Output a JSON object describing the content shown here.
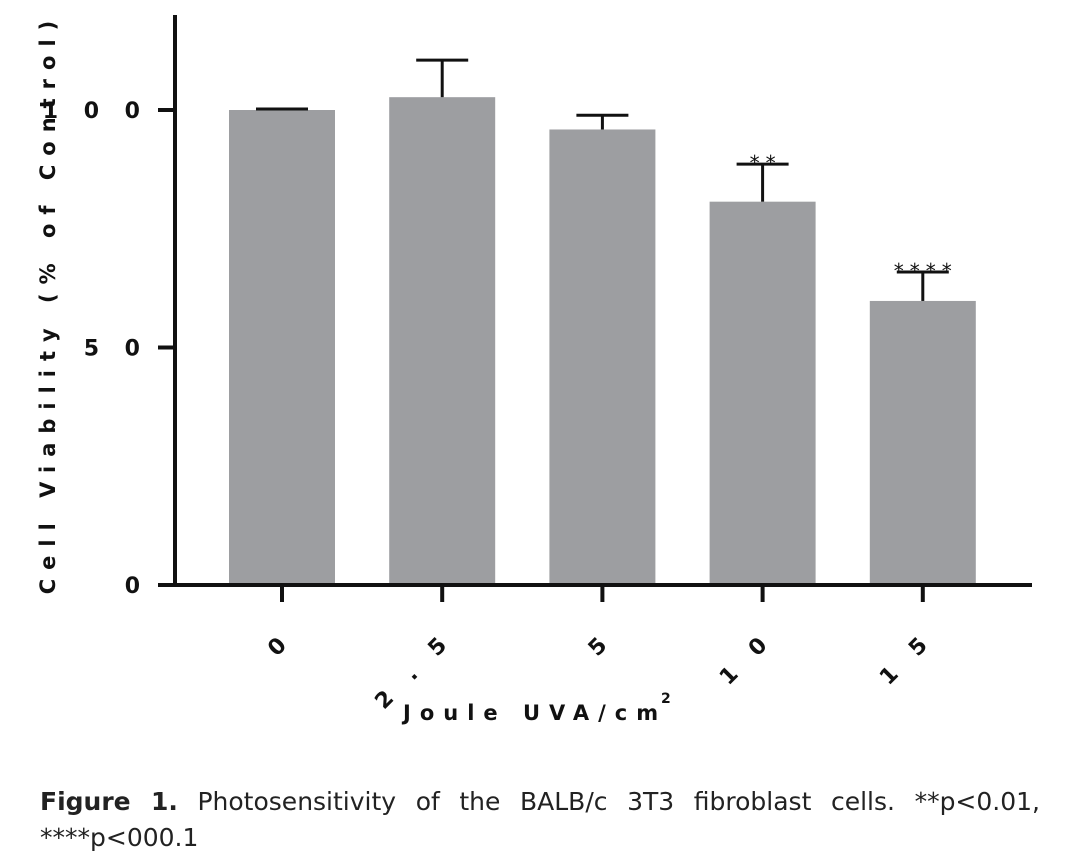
{
  "chart_data": {
    "type": "bar",
    "categories": [
      "0",
      "2.5",
      "5",
      "10",
      "15"
    ],
    "tick_labels": [
      "0",
      "2 . 5",
      "5",
      "1 0",
      "1 5"
    ],
    "values": [
      100,
      102.7,
      95.9,
      80.7,
      59.8
    ],
    "error_upper": [
      100.2,
      110.5,
      98.9,
      88.6,
      65.9
    ],
    "significance": [
      "",
      "",
      "",
      "**",
      "****"
    ],
    "xlabel": "Joule UVA/cm",
    "xlabel_superscript": "2",
    "ylabel": "Cell Viability (% of Control)",
    "ylim": [
      0,
      120
    ],
    "yticks": [
      0,
      50,
      100
    ],
    "ytick_labels": [
      "0",
      "5 0",
      "1 0 0"
    ],
    "grid": false,
    "legend": "none",
    "bar_color": "#9d9ea1"
  },
  "caption": {
    "label": "Figure 1.",
    "text": " Photosensitivity of the BALB/c 3T3 fibroblast cells. **p<0.01, ****p<000.1"
  }
}
